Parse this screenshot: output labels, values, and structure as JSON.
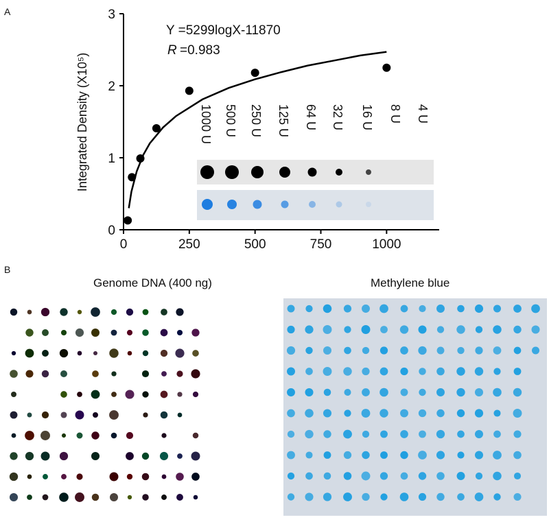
{
  "panel_labels": [
    "A",
    "B"
  ],
  "chart_data": {
    "type": "scatter",
    "y_label": "Integrated Density (X10⁵)",
    "equation": "Y =5299logX-11870",
    "r_symbol": "R",
    "r_value": "=0.983",
    "x": [
      16,
      32,
      64,
      125,
      250,
      500,
      1000
    ],
    "values": [
      0.13,
      0.73,
      0.99,
      1.41,
      1.93,
      2.18,
      2.25
    ],
    "color": "#000000",
    "fit": {
      "x": [
        20,
        30,
        50,
        75,
        100,
        150,
        200,
        300,
        400,
        500,
        600,
        700,
        800,
        900,
        1000
      ],
      "values": [
        0.3,
        0.53,
        0.81,
        1.04,
        1.2,
        1.42,
        1.58,
        1.81,
        1.97,
        2.09,
        2.19,
        2.28,
        2.35,
        2.42,
        2.47
      ]
    },
    "xlim": [
      0,
      1200
    ],
    "ylim": [
      0,
      3
    ],
    "xticks": [
      0,
      250,
      500,
      750,
      1000
    ],
    "yticks": [
      0,
      1,
      2,
      3
    ],
    "inset_labels": [
      "1000 U",
      "500 U",
      "250 U",
      "125 U",
      "64 U",
      "32 U",
      "16 U",
      "8 U",
      "4 U"
    ]
  },
  "panel_b": {
    "left_title": "Genome DNA (400 ng)",
    "right_title": "Methylene blue"
  }
}
